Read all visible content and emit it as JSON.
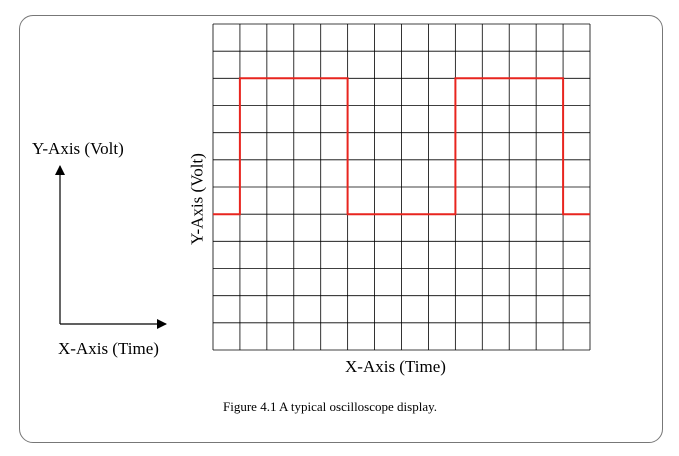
{
  "side_axes": {
    "y_label": "Y-Axis (Volt)",
    "x_label": "X-Axis (Time)"
  },
  "screen": {
    "x_label": "X-Axis (Time)",
    "y_label": "Y-Axis (Volt)",
    "grid_columns": 14,
    "grid_rows": 12,
    "grid_color": "#000000",
    "trace_color": "#e8251f"
  },
  "chart_data": {
    "type": "line",
    "grid": true,
    "series": [
      {
        "points": [
          [
            0,
            5
          ],
          [
            1,
            5
          ],
          [
            1,
            10
          ],
          [
            5,
            10
          ],
          [
            5,
            5
          ],
          [
            9,
            5
          ],
          [
            9,
            10
          ],
          [
            13,
            10
          ],
          [
            13,
            5
          ],
          [
            14,
            5
          ]
        ]
      }
    ],
    "xlim": [
      0,
      14
    ],
    "ylim": [
      0,
      12
    ]
  },
  "caption": "Figure 4.1 A typical oscilloscope display."
}
